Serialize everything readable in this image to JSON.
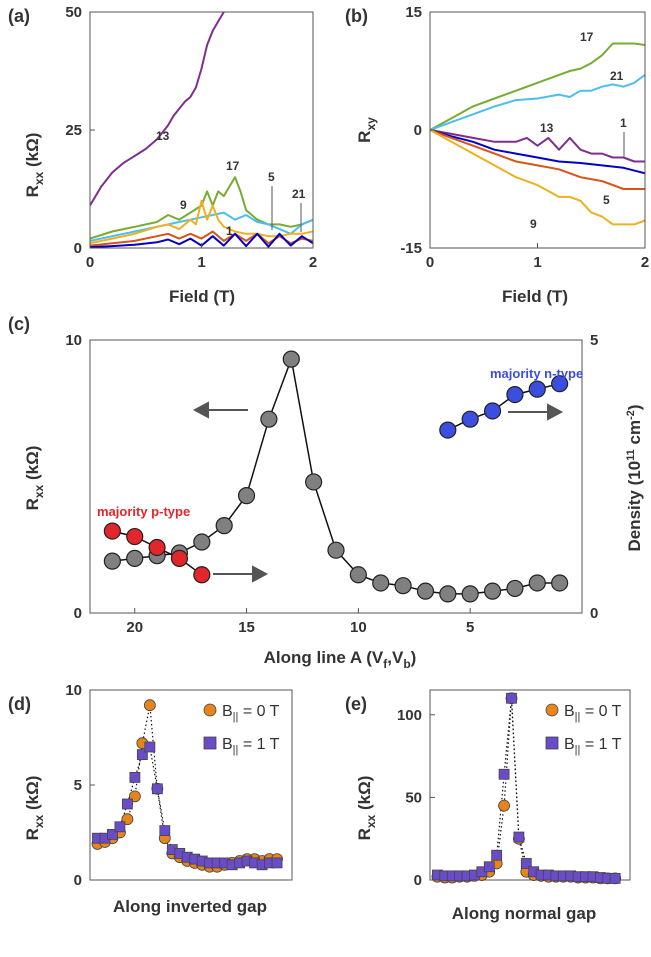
{
  "chart_data": [
    {
      "panel": "(a)",
      "type": "line",
      "xlabel": "Field (T)",
      "ylabel": "R_xx (kΩ)",
      "xlim": [
        0,
        2
      ],
      "ylim": [
        0,
        50
      ],
      "xticks": [
        0,
        1,
        2
      ],
      "yticks": [
        0,
        25,
        50
      ],
      "series": [
        {
          "name": "13",
          "color": "#7e2f8e",
          "x": [
            0,
            0.1,
            0.2,
            0.3,
            0.4,
            0.5,
            0.6,
            0.65,
            0.7,
            0.75,
            0.8,
            0.85,
            0.9,
            0.95,
            1.0,
            1.05,
            1.1,
            1.15,
            1.2
          ],
          "y": [
            9,
            13,
            16,
            18,
            19.5,
            21,
            23,
            24.5,
            26,
            28,
            29.5,
            31,
            32,
            34,
            38,
            43,
            46,
            48,
            50
          ]
        },
        {
          "name": "17",
          "color": "#77ac30",
          "x": [
            0,
            0.2,
            0.4,
            0.6,
            0.7,
            0.8,
            0.9,
            1.0,
            1.05,
            1.1,
            1.15,
            1.2,
            1.25,
            1.3,
            1.35,
            1.4,
            1.5,
            1.6,
            1.7,
            1.8,
            1.9,
            2.0
          ],
          "y": [
            2,
            3.5,
            4.5,
            5.5,
            7,
            6,
            7.5,
            9,
            12,
            9,
            12,
            11,
            13,
            15,
            12,
            8,
            6,
            5,
            5,
            4.5,
            5,
            6
          ]
        },
        {
          "name": "21",
          "color": "#4dbeee",
          "x": [
            0,
            0.2,
            0.4,
            0.6,
            0.8,
            1.0,
            1.1,
            1.2,
            1.3,
            1.4,
            1.5,
            1.6,
            1.7,
            1.8,
            1.9,
            2.0
          ],
          "y": [
            1.5,
            2.5,
            3.5,
            4.5,
            5.5,
            6.5,
            7,
            7.5,
            6,
            7,
            5.5,
            5,
            4,
            3,
            5,
            6
          ]
        },
        {
          "name": "9",
          "color": "#edb120",
          "x": [
            0,
            0.2,
            0.4,
            0.6,
            0.7,
            0.8,
            0.9,
            0.95,
            1.0,
            1.05,
            1.1,
            1.15,
            1.2,
            1.3,
            1.4,
            1.5,
            1.6,
            1.7,
            1.8,
            1.9,
            2.0
          ],
          "y": [
            1,
            2,
            3,
            4.5,
            5,
            4,
            6,
            5,
            10,
            6,
            9,
            6,
            4.5,
            3.5,
            3,
            3,
            2.5,
            2.5,
            3,
            3,
            3.5
          ]
        },
        {
          "name": "5",
          "color": "#d95319",
          "x": [
            0,
            0.2,
            0.4,
            0.6,
            0.7,
            0.8,
            0.9,
            1.0,
            1.1,
            1.2,
            1.3,
            1.4,
            1.5,
            1.6,
            1.7,
            1.8,
            1.9,
            2.0
          ],
          "y": [
            0.5,
            1,
            1.5,
            2.5,
            3,
            2,
            3,
            2,
            3.5,
            1.5,
            3,
            1.5,
            3,
            1,
            2.5,
            1,
            2,
            1.5
          ]
        },
        {
          "name": "1",
          "color": "#0000c8",
          "x": [
            0,
            0.2,
            0.4,
            0.6,
            0.7,
            0.8,
            0.9,
            1.0,
            1.1,
            1.2,
            1.3,
            1.4,
            1.5,
            1.6,
            1.7,
            1.8,
            1.9,
            2.0
          ],
          "y": [
            0.2,
            0.4,
            0.7,
            1.2,
            1.8,
            0.8,
            2,
            0.5,
            2.5,
            0.5,
            3,
            0.4,
            3,
            0.3,
            3,
            0.5,
            2.5,
            1
          ]
        }
      ],
      "annotations": [
        "13",
        "17",
        "9",
        "1",
        "5",
        "21"
      ]
    },
    {
      "panel": "(b)",
      "type": "line",
      "xlabel": "Field (T)",
      "ylabel": "R_xy",
      "xlim": [
        0,
        2
      ],
      "ylim": [
        -15,
        15
      ],
      "xticks": [
        0,
        1,
        2
      ],
      "yticks": [
        -15,
        0,
        15
      ],
      "series": [
        {
          "name": "17",
          "color": "#77ac30",
          "x": [
            0,
            0.2,
            0.4,
            0.6,
            0.8,
            1.0,
            1.2,
            1.3,
            1.4,
            1.5,
            1.6,
            1.7,
            1.8,
            1.9,
            2.0
          ],
          "y": [
            0,
            1.5,
            3,
            4,
            5,
            6,
            7,
            7.5,
            7.8,
            8.5,
            9.5,
            11,
            11,
            11,
            10.8
          ]
        },
        {
          "name": "21",
          "color": "#4dbeee",
          "x": [
            0,
            0.2,
            0.4,
            0.6,
            0.8,
            1.0,
            1.2,
            1.3,
            1.4,
            1.5,
            1.6,
            1.7,
            1.8,
            1.9,
            2.0
          ],
          "y": [
            0,
            1,
            2,
            3,
            3.8,
            4,
            4.5,
            4.2,
            5,
            5,
            5.5,
            5.8,
            5.5,
            6,
            7
          ]
        },
        {
          "name": "13",
          "color": "#7e2f8e",
          "x": [
            0,
            0.2,
            0.4,
            0.6,
            0.8,
            0.9,
            1.0,
            1.1,
            1.2,
            1.3,
            1.4,
            1.5,
            1.6,
            1.7,
            1.8,
            1.9,
            2.0
          ],
          "y": [
            0,
            -0.5,
            -1,
            -1.5,
            -1.5,
            -1,
            -2,
            -1,
            -2.5,
            -1,
            -2.5,
            -3,
            -3,
            -3.5,
            -3.5,
            -4,
            -4
          ]
        },
        {
          "name": "1",
          "color": "#0000c8",
          "x": [
            0,
            0.2,
            0.4,
            0.6,
            0.8,
            1.0,
            1.2,
            1.4,
            1.6,
            1.8,
            2.0
          ],
          "y": [
            0,
            -0.8,
            -1.5,
            -2.5,
            -3,
            -3.5,
            -4,
            -4.2,
            -4.5,
            -4.8,
            -5.5
          ]
        },
        {
          "name": "5",
          "color": "#d95319",
          "x": [
            0,
            0.2,
            0.4,
            0.6,
            0.8,
            1.0,
            1.2,
            1.4,
            1.6,
            1.8,
            2.0
          ],
          "y": [
            0,
            -1,
            -2,
            -3,
            -4,
            -4.5,
            -5,
            -6,
            -6.5,
            -7.5,
            -7.5
          ]
        },
        {
          "name": "9",
          "color": "#edb120",
          "x": [
            0,
            0.2,
            0.4,
            0.6,
            0.8,
            1.0,
            1.2,
            1.3,
            1.4,
            1.5,
            1.6,
            1.7,
            1.8,
            1.9,
            2.0
          ],
          "y": [
            0,
            -1.5,
            -3,
            -4.5,
            -6,
            -7,
            -8.5,
            -8.5,
            -9,
            -10.5,
            -11,
            -12,
            -12,
            -12,
            -11.5
          ]
        }
      ],
      "annotations": [
        "17",
        "21",
        "13",
        "1",
        "5",
        "9"
      ]
    },
    {
      "panel": "(c)",
      "type": "scatter",
      "xlabel": "Along line A (V_f,V_b)",
      "ylabel": "R_xx (kΩ)",
      "ylabel_right": "Density (10^11 cm^-2)",
      "xlim": [
        22,
        0
      ],
      "ylim": [
        0,
        10
      ],
      "ylim_right": [
        0,
        5
      ],
      "xticks": [
        20,
        15,
        10,
        5
      ],
      "yticks": [
        0,
        10
      ],
      "yticks_right": [
        0,
        5
      ],
      "series": [
        {
          "name": "Rxx",
          "color": "#808080",
          "x": [
            21,
            20,
            19,
            18,
            17,
            16,
            15,
            14,
            13,
            12,
            11,
            10,
            9,
            8,
            7,
            6,
            5,
            4,
            3,
            2,
            1
          ],
          "y": [
            1.9,
            2,
            2.1,
            2.2,
            2.6,
            3.2,
            4.3,
            7.1,
            9.3,
            4.8,
            2.3,
            1.4,
            1.1,
            1.0,
            0.8,
            0.7,
            0.7,
            0.8,
            0.9,
            1.1,
            1.1
          ]
        },
        {
          "name": "majority p-type",
          "color": "#e3262b",
          "axis": "right",
          "x": [
            21,
            20,
            19,
            18,
            17
          ],
          "y": [
            1.5,
            1.4,
            1.2,
            1.0,
            0.7
          ]
        },
        {
          "name": "majority n-type",
          "color": "#3b4ee0",
          "axis": "right",
          "x": [
            6,
            5,
            4,
            3,
            2,
            1
          ],
          "y": [
            3.35,
            3.55,
            3.7,
            4.0,
            4.1,
            4.2
          ]
        }
      ],
      "annotations": [
        "majority p-type",
        "majority n-type"
      ]
    },
    {
      "panel": "(d)",
      "type": "scatter",
      "xlabel": "Along inverted gap",
      "ylabel": "R_xx (kΩ)",
      "ylim": [
        0,
        10
      ],
      "yticks": [
        0,
        5,
        10
      ],
      "series": [
        {
          "name": "B|| = 0 T",
          "color": "#e8841c",
          "marker": "circle",
          "x": [
            1,
            2,
            3,
            4,
            5,
            6,
            7,
            8,
            9,
            10,
            11,
            12,
            13,
            14,
            15,
            16,
            17,
            18,
            19,
            20,
            21,
            22,
            23,
            24,
            25
          ],
          "y": [
            1.9,
            2,
            2.2,
            2.5,
            3.2,
            4.4,
            7.2,
            9.2,
            4.8,
            2.2,
            1.4,
            1.2,
            1.0,
            0.9,
            0.8,
            0.7,
            0.7,
            0.8,
            0.9,
            1.0,
            1.1,
            1.1,
            1.0,
            1.1,
            1.1
          ]
        },
        {
          "name": "B|| = 1 T",
          "color": "#6a4cc8",
          "marker": "square",
          "x": [
            1,
            2,
            3,
            4,
            5,
            6,
            7,
            8,
            9,
            10,
            11,
            12,
            13,
            14,
            15,
            16,
            17,
            18,
            19,
            20,
            21,
            22,
            23,
            24,
            25
          ],
          "y": [
            2.2,
            2.2,
            2.4,
            2.8,
            4.0,
            5.4,
            6.6,
            7.0,
            4.8,
            2.6,
            1.6,
            1.4,
            1.2,
            1.1,
            1.0,
            0.9,
            0.9,
            0.9,
            0.8,
            0.9,
            1.0,
            0.9,
            0.8,
            0.9,
            0.9
          ]
        }
      ],
      "legend": [
        "B|| = 0 T",
        "B|| = 1 T"
      ]
    },
    {
      "panel": "(e)",
      "type": "scatter",
      "xlabel": "Along normal gap",
      "ylabel": "R_xx (kΩ)",
      "ylim": [
        0,
        115
      ],
      "yticks": [
        0,
        50,
        100
      ],
      "series": [
        {
          "name": "B|| = 0 T",
          "color": "#e8841c",
          "marker": "circle",
          "x": [
            1,
            2,
            3,
            4,
            5,
            6,
            7,
            8,
            9,
            10,
            11,
            12,
            13,
            14,
            15,
            16,
            17,
            18,
            19,
            20,
            21,
            22,
            23,
            24,
            25
          ],
          "y": [
            2,
            1.5,
            1.5,
            2,
            2,
            2.5,
            3,
            5,
            10,
            45,
            110,
            25,
            5,
            3,
            2.5,
            2,
            2,
            2,
            2,
            1.5,
            1.5,
            1.5,
            1,
            1,
            1
          ]
        },
        {
          "name": "B|| = 1 T",
          "color": "#6a4cc8",
          "marker": "square",
          "x": [
            1,
            2,
            3,
            4,
            5,
            6,
            7,
            8,
            9,
            10,
            11,
            12,
            13,
            14,
            15,
            16,
            17,
            18,
            19,
            20,
            21,
            22,
            23,
            24,
            25
          ],
          "y": [
            3,
            2.5,
            2.5,
            2.5,
            2.5,
            3,
            5,
            8,
            15,
            64,
            110,
            26,
            10,
            5,
            3,
            3,
            2.5,
            2.5,
            2.5,
            2,
            2,
            2,
            1.5,
            1,
            1
          ]
        }
      ],
      "legend": [
        "B|| = 0 T",
        "B|| = 1 T"
      ]
    }
  ],
  "labels": {
    "panel_a": "(a)",
    "panel_b": "(b)",
    "panel_c": "(c)",
    "panel_d": "(d)",
    "panel_e": "(e)",
    "a_xlabel": "Field (T)",
    "b_xlabel": "Field (T)",
    "rxx_main": "R",
    "rxx_sub": "xx",
    "rxx_unit": "(kΩ)",
    "rxy_main": "R",
    "rxy_sub": "xy",
    "c_xlabel_main": "Along line A (V",
    "c_xlabel_f": "f",
    "c_xlabel_mid": ",V",
    "c_xlabel_b": "b",
    "c_xlabel_end": ")",
    "density_main": "Density (10",
    "density_sup1": "11",
    "density_mid": " cm",
    "density_sup2": "-2",
    "density_end": ")",
    "d_xlabel": "Along inverted gap",
    "e_xlabel": "Along normal gap",
    "legend_b0_main": "B",
    "legend_b0_sub": "||",
    "legend_b0_val": " = 0 T",
    "legend_b1_main": "B",
    "legend_b1_sub": "||",
    "legend_b1_val": " = 1 T",
    "p_type": "majority p-type",
    "n_type": "majority n-type"
  }
}
